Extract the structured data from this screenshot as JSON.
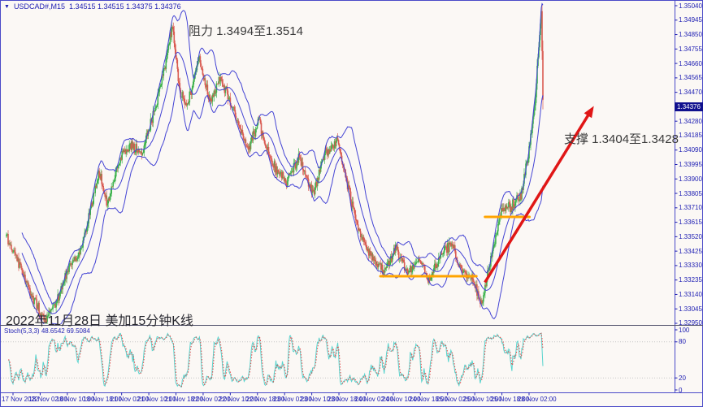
{
  "window": {
    "dropdown_icon": "▼",
    "symbol_label": "USDCAD#,M15",
    "ohlc_text": "1.34515 1.34515 1.34375 1.34376",
    "ohlc": {
      "open": "1.34515",
      "high": "1.34515",
      "low": "1.34375",
      "close": "1.34376"
    }
  },
  "annotations": {
    "resistance": "阻力 1.3494至1.3514",
    "support": "支撑 1.3404至1.3428",
    "caption": "2022年11月28日 美加15分钟K线",
    "stoch_label": "Stoch(5,3,3)",
    "stoch_values": "48.6542 69.5084"
  },
  "price_axis": {
    "labels": [
      "1.35040",
      "1.34945",
      "1.34850",
      "1.34755",
      "1.34660",
      "1.34565",
      "1.34470",
      "1.34375",
      "1.34280",
      "1.34185",
      "1.34090",
      "1.33995",
      "1.33900",
      "1.33805",
      "1.33710",
      "1.33615",
      "1.33520",
      "1.33425",
      "1.33330",
      "1.33235",
      "1.33140",
      "1.33045",
      "1.32950"
    ],
    "current_price": "1.34376"
  },
  "time_axis": {
    "labels": [
      "17 Nov 2022",
      "18 Nov 02:00",
      "18 Nov 10:00",
      "18 Nov 18:00",
      "21 Nov 02:00",
      "21 Nov 10:00",
      "21 Nov 18:00",
      "22 Nov 02:00",
      "22 Nov 10:00",
      "22 Nov 18:00",
      "23 Nov 02:00",
      "23 Nov 10:00",
      "23 Nov 18:00",
      "24 Nov 02:00",
      "24 Nov 10:00",
      "24 Nov 18:00",
      "25 Nov 02:00",
      "25 Nov 10:00",
      "25 Nov 18:00",
      "28 Nov 02:00"
    ]
  },
  "stoch_axis": {
    "labels": [
      "100",
      "80",
      "20",
      "0"
    ],
    "level_lines": [
      80,
      20
    ]
  },
  "colors": {
    "background": "#fbf8f5",
    "frame_blue": "#4a4ac8",
    "axis_text": "#2222b4",
    "band_blue": "#4343d4",
    "bull_green": "#3db24d",
    "bear_red": "#d95b52",
    "orange_line": "#ffa400",
    "arrow_red": "#e01616",
    "stoch_k_cyan": "#58d4ce",
    "stoch_d_red": "#e24444",
    "level_dotted_gray": "#c6c6c6",
    "price_tag_bg": "#10108e",
    "separator": "#55556e"
  },
  "chart_data": {
    "type": "candlestick",
    "title": "USDCAD# M15 candlesticks with Bollinger Bands, Stochastic(5,3,3)",
    "symbol": "USDCAD#",
    "timeframe": "M15",
    "candle_count": 660,
    "last_ohlc": {
      "open": 1.34515,
      "high": 1.34515,
      "low": 1.34375,
      "close": 1.34376
    },
    "y_axis": {
      "top": 1.3504,
      "bottom": 1.3295,
      "step": 0.00095,
      "ticks": 23
    },
    "x_axis": {
      "first_label": "17 Nov 2022",
      "last_label": "28 Nov 02:00",
      "interval_hours": 8
    },
    "grid": false,
    "price_path": [
      [
        0.0,
        1.3352
      ],
      [
        0.026,
        1.3332
      ],
      [
        0.048,
        1.3312
      ],
      [
        0.071,
        1.3297
      ],
      [
        0.094,
        1.331
      ],
      [
        0.117,
        1.3332
      ],
      [
        0.139,
        1.3342
      ],
      [
        0.158,
        1.3372
      ],
      [
        0.173,
        1.3395
      ],
      [
        0.188,
        1.3372
      ],
      [
        0.208,
        1.3402
      ],
      [
        0.23,
        1.3412
      ],
      [
        0.253,
        1.3408
      ],
      [
        0.276,
        1.3435
      ],
      [
        0.294,
        1.3462
      ],
      [
        0.309,
        1.3492
      ],
      [
        0.324,
        1.3445
      ],
      [
        0.339,
        1.344
      ],
      [
        0.359,
        1.347
      ],
      [
        0.379,
        1.3442
      ],
      [
        0.4,
        1.3456
      ],
      [
        0.424,
        1.3435
      ],
      [
        0.45,
        1.341
      ],
      [
        0.47,
        1.3428
      ],
      [
        0.495,
        1.34
      ],
      [
        0.521,
        1.3388
      ],
      [
        0.545,
        1.3405
      ],
      [
        0.571,
        1.338
      ],
      [
        0.594,
        1.3408
      ],
      [
        0.617,
        1.3415
      ],
      [
        0.636,
        1.3385
      ],
      [
        0.658,
        1.3355
      ],
      [
        0.682,
        1.3337
      ],
      [
        0.703,
        1.333
      ],
      [
        0.726,
        1.3344
      ],
      [
        0.748,
        1.3328
      ],
      [
        0.771,
        1.3338
      ],
      [
        0.786,
        1.3322
      ],
      [
        0.809,
        1.334
      ],
      [
        0.83,
        1.3348
      ],
      [
        0.847,
        1.333
      ],
      [
        0.867,
        1.3326
      ],
      [
        0.886,
        1.3308
      ],
      [
        0.906,
        1.3342
      ],
      [
        0.923,
        1.337
      ],
      [
        0.942,
        1.3372
      ],
      [
        0.959,
        1.3378
      ],
      [
        0.974,
        1.3408
      ],
      [
        0.986,
        1.3445
      ],
      [
        0.994,
        1.3485
      ],
      [
        0.997,
        1.3503
      ],
      [
        1.0,
        1.344
      ]
    ],
    "indicators": [
      {
        "name": "Bollinger Bands",
        "period": 20,
        "deviation": 2,
        "lines": [
          "upper",
          "middle",
          "lower"
        ]
      },
      {
        "name": "Stochastic",
        "k_period": 5,
        "d_period": 3,
        "slowing": 3,
        "k_value": 48.6542,
        "d_value": 69.5084,
        "levels": [
          80,
          20
        ],
        "scale": [
          0,
          100
        ]
      }
    ],
    "levels": {
      "resistance_zone": [
        1.3494,
        1.3514
      ],
      "support_zone": [
        1.3404,
        1.3428
      ]
    },
    "drawings": {
      "orange_segments": [
        {
          "t1": 0.697,
          "t2": 0.876,
          "price": 1.3326
        },
        {
          "t1": 0.892,
          "t2": 0.975,
          "price": 1.3365
        }
      ],
      "trend_arrow": {
        "t1": 0.892,
        "price1": 1.3322,
        "t2": 1.095,
        "price2": 1.3438
      }
    }
  }
}
